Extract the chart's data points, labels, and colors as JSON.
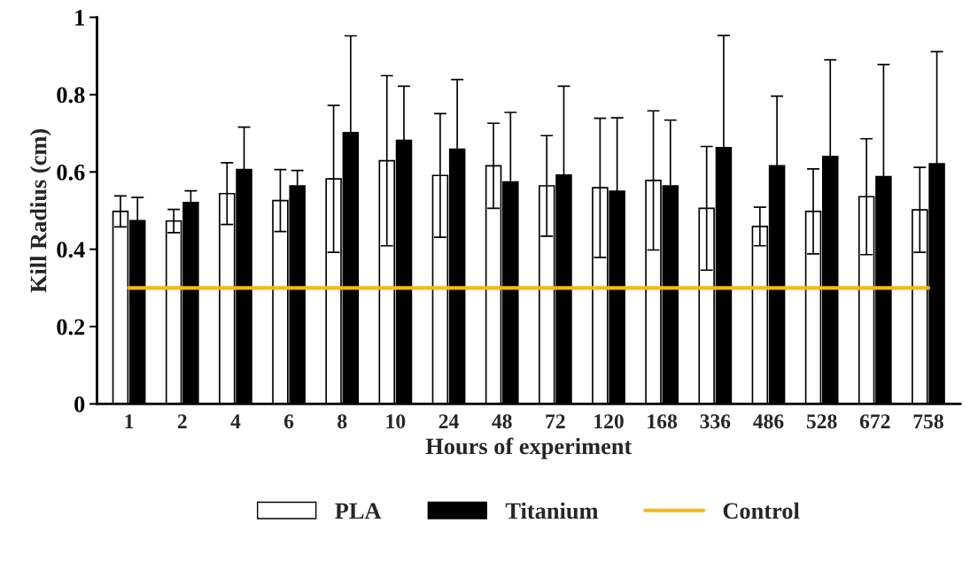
{
  "chart_data": {
    "type": "bar",
    "xlabel": "Hours of experiment",
    "ylabel": "Kill Radius (cm)",
    "categories": [
      "1",
      "2",
      "4",
      "6",
      "8",
      "10",
      "24",
      "48",
      "72",
      "120",
      "168",
      "336",
      "486",
      "528",
      "672",
      "758"
    ],
    "series": [
      {
        "name": "PLA",
        "color": "#ffffff",
        "values": [
          0.498,
          0.473,
          0.544,
          0.526,
          0.582,
          0.629,
          0.591,
          0.616,
          0.564,
          0.559,
          0.578,
          0.506,
          0.459,
          0.498,
          0.536,
          0.502
        ],
        "errors": [
          0.04,
          0.03,
          0.08,
          0.08,
          0.19,
          0.22,
          0.16,
          0.11,
          0.13,
          0.18,
          0.18,
          0.16,
          0.05,
          0.11,
          0.15,
          0.11
        ]
      },
      {
        "name": "Titanium",
        "color": "#000000",
        "values": [
          0.474,
          0.521,
          0.606,
          0.564,
          0.702,
          0.682,
          0.659,
          0.574,
          0.592,
          0.55,
          0.564,
          0.663,
          0.616,
          0.64,
          0.588,
          0.621
        ],
        "errors": [
          0.06,
          0.03,
          0.11,
          0.04,
          0.25,
          0.14,
          0.18,
          0.18,
          0.23,
          0.19,
          0.17,
          0.29,
          0.18,
          0.25,
          0.29,
          0.29
        ]
      },
      {
        "name": "Control",
        "type": "line",
        "color": "#f5b914",
        "values": [
          0.3,
          0.3,
          0.3,
          0.3,
          0.3,
          0.3,
          0.3,
          0.3,
          0.3,
          0.3,
          0.3,
          0.3,
          0.3,
          0.3,
          0.3,
          0.3
        ]
      }
    ],
    "ylim": [
      0,
      1
    ],
    "yticks": [
      0,
      0.2,
      0.4,
      0.6,
      0.8,
      1
    ],
    "grid": false,
    "legend": "bottom"
  }
}
